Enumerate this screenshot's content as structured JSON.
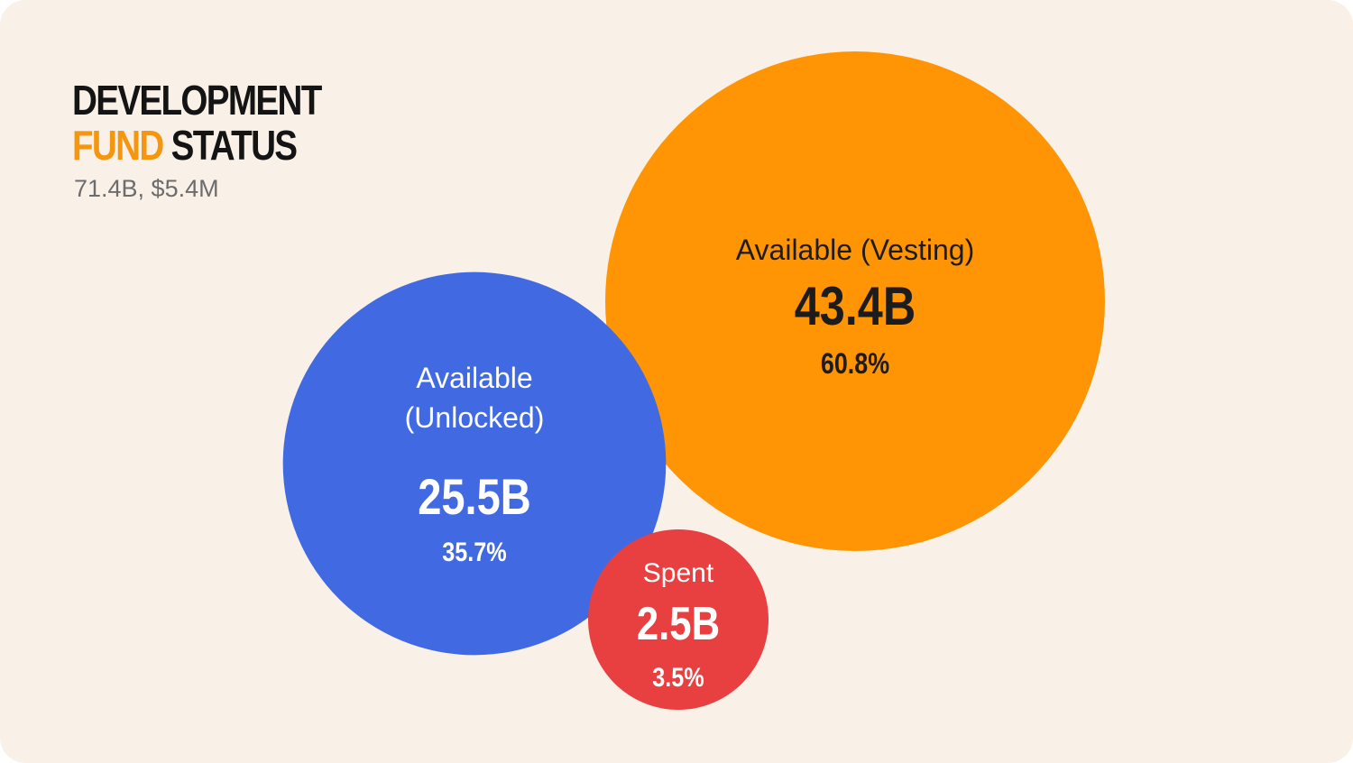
{
  "header": {
    "title_line1": "DEVELOPMENT",
    "title_accent": "FUND",
    "title_rest": "STATUS",
    "subtitle": "71.4B, $5.4M"
  },
  "colors": {
    "background": "#f9f1e8",
    "accent": "#f5960e",
    "title": "#141414",
    "subtitle": "#6c6c6c"
  },
  "chart_data": {
    "type": "bubble",
    "title": "DEVELOPMENT FUND STATUS",
    "subtitle": "71.4B, $5.4M",
    "unit": "B",
    "series": [
      {
        "name": "Available (Vesting)",
        "label_lines": [
          "Available (Vesting)"
        ],
        "value": 43.4,
        "value_label": "43.4B",
        "percent": 60.8,
        "percent_label": "60.8%",
        "color": "#ff9505",
        "text_color": "#1c1c1c"
      },
      {
        "name": "Available (Unlocked)",
        "label_lines": [
          "Available",
          "(Unlocked)"
        ],
        "value": 25.5,
        "value_label": "25.5B",
        "percent": 35.7,
        "percent_label": "35.7%",
        "color": "#4169e1",
        "text_color": "#ffffff"
      },
      {
        "name": "Spent",
        "label_lines": [
          "Spent"
        ],
        "value": 2.5,
        "value_label": "2.5B",
        "percent": 3.5,
        "percent_label": "3.5%",
        "color": "#e84040",
        "text_color": "#ffffff"
      }
    ]
  }
}
